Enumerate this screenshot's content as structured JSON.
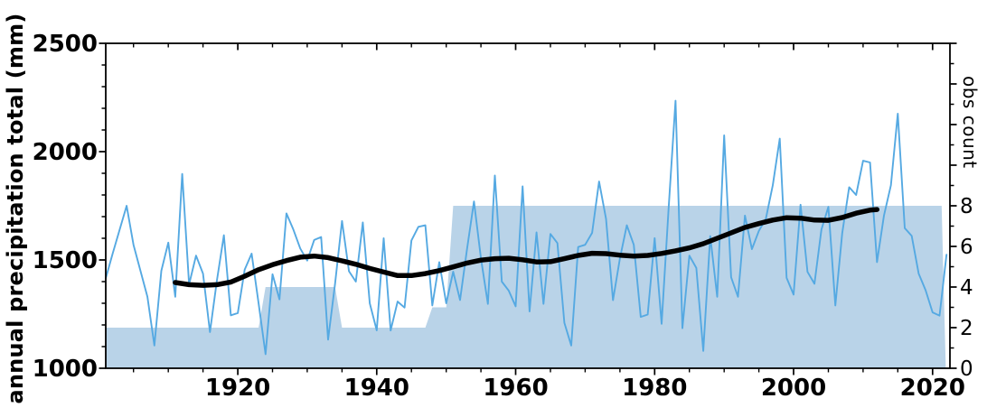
{
  "chart_data": {
    "type": "line",
    "title": "",
    "xlabel": "",
    "ylabel_left": "annual precipitation total (mm)",
    "ylabel_right": "obs count",
    "grid": false,
    "legend": null,
    "xlim": [
      1901,
      2022.5
    ],
    "ylim_left": [
      1000,
      2500
    ],
    "ylim_right": [
      0,
      16
    ],
    "x_major_ticks": [
      1920,
      1940,
      1960,
      1980,
      2000,
      2020
    ],
    "x_minor_step_years": 5,
    "left_major_ticks": [
      1000,
      1500,
      2000,
      2500
    ],
    "left_minor_step": 100,
    "right_labeled_ticks": [
      0,
      2,
      4,
      6,
      8
    ],
    "right_major_step": 2,
    "right_minor_step": 1,
    "colors": {
      "precipitation_line": "#55a9e2",
      "obs_count_fill": "#b9d3e8",
      "trend_line": "#000000",
      "axis": "#000000",
      "background": "#ffffff"
    },
    "series": [
      {
        "name": "annual precipitation total",
        "type": "line",
        "axis": "left",
        "color": "#55a9e2",
        "x_start_year": 1901,
        "x_step": 1,
        "values": [
          1415,
          1530,
          1640,
          1750,
          1570,
          1450,
          1330,
          1105,
          1450,
          1580,
          1330,
          1897,
          1387,
          1520,
          1437,
          1167,
          1406,
          1614,
          1244,
          1255,
          1455,
          1529,
          1300,
          1065,
          1434,
          1318,
          1715,
          1640,
          1553,
          1497,
          1592,
          1606,
          1132,
          1390,
          1680,
          1448,
          1400,
          1673,
          1300,
          1175,
          1600,
          1174,
          1308,
          1280,
          1590,
          1653,
          1660,
          1290,
          1490,
          1300,
          1446,
          1315,
          1550,
          1770,
          1508,
          1297,
          1890,
          1400,
          1358,
          1286,
          1840,
          1262,
          1627,
          1297,
          1620,
          1578,
          1210,
          1105,
          1560,
          1570,
          1625,
          1862,
          1690,
          1314,
          1508,
          1660,
          1570,
          1237,
          1248,
          1601,
          1205,
          1735,
          2235,
          1185,
          1520,
          1463,
          1080,
          1610,
          1330,
          2075,
          1420,
          1330,
          1705,
          1550,
          1634,
          1690,
          1845,
          2060,
          1417,
          1340,
          1755,
          1445,
          1390,
          1640,
          1745,
          1290,
          1623,
          1836,
          1800,
          1958,
          1950,
          1490,
          1705,
          1845,
          2175,
          1647,
          1611,
          1437,
          1360,
          1258,
          1243,
          1524
        ]
      },
      {
        "name": "smoothed trend",
        "type": "line",
        "axis": "left",
        "color": "#000000",
        "x": [
          1911,
          1913,
          1915,
          1917,
          1919,
          1921,
          1923,
          1925,
          1927,
          1929,
          1931,
          1933,
          1935,
          1937,
          1939,
          1941,
          1943,
          1945,
          1947,
          1949,
          1951,
          1953,
          1955,
          1957,
          1959,
          1961,
          1963,
          1965,
          1967,
          1969,
          1971,
          1973,
          1975,
          1977,
          1979,
          1981,
          1983,
          1985,
          1987,
          1989,
          1991,
          1993,
          1995,
          1997,
          1999,
          2001,
          2003,
          2005,
          2007,
          2009,
          2011,
          2012
        ],
        "values": [
          1396,
          1386,
          1383,
          1386,
          1398,
          1425,
          1455,
          1478,
          1497,
          1513,
          1518,
          1511,
          1496,
          1480,
          1461,
          1444,
          1428,
          1428,
          1437,
          1451,
          1468,
          1486,
          1499,
          1506,
          1508,
          1501,
          1491,
          1492,
          1506,
          1521,
          1531,
          1529,
          1522,
          1518,
          1521,
          1530,
          1542,
          1556,
          1575,
          1600,
          1625,
          1650,
          1668,
          1684,
          1695,
          1693,
          1684,
          1683,
          1696,
          1716,
          1730,
          1733
        ]
      },
      {
        "name": "obs count",
        "type": "area",
        "axis": "right",
        "color": "#b9d3e8",
        "x": [
          1901,
          1923,
          1924,
          1934,
          1935,
          1947,
          1948,
          1950,
          1951,
          2021,
          2021.3,
          2021.9
        ],
        "values": [
          2,
          2,
          4,
          4,
          2,
          2,
          3,
          3,
          8,
          8,
          8,
          0
        ]
      }
    ]
  }
}
